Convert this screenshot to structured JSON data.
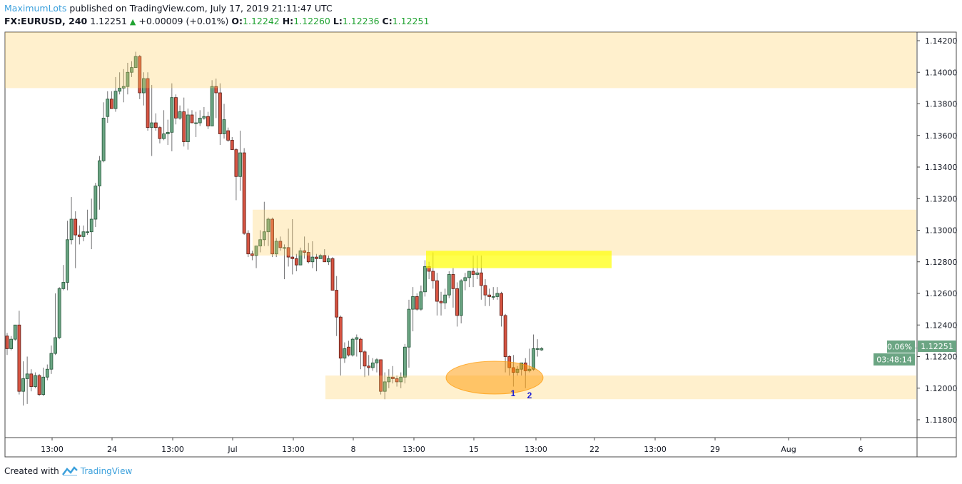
{
  "header": {
    "author": "MaximumLots",
    "published": " published on TradingView.com, July 17, 2019 21:11:47 UTC",
    "symbol": "FX:EURUSD, 240",
    "last": "1.12251",
    "change": "+0.00009 (+0.01%)",
    "o_label": "O:",
    "o": "1.12242",
    "h_label": "H:",
    "h": "1.12260",
    "l_label": "L:",
    "l": "1.12236",
    "c_label": "C:",
    "c": "1.12251"
  },
  "footer": {
    "created_with": "Created with",
    "brand": "TradingView"
  },
  "price_tag": {
    "percent": "0.06%",
    "price": "1.12251",
    "countdown": "03:48:14"
  },
  "markers": [
    "1",
    "2"
  ],
  "colors": {
    "up": "#6ba583",
    "up_border": "#225437",
    "down": "#d75442",
    "down_border": "#5b1a13",
    "wick": "#737375",
    "zone": "#ffcd5a",
    "highlight": "#ffff00",
    "ellipse": "#ff9800",
    "marker_text": "#1d1dd6"
  },
  "chart_data": {
    "type": "candlestick",
    "symbol": "FX:EURUSD",
    "interval": "240",
    "ylim": [
      1.1172,
      1.1426
    ],
    "y_ticks": [
      "1.14200",
      "1.14000",
      "1.13800",
      "1.13600",
      "1.13400",
      "1.13200",
      "1.13000",
      "1.12800",
      "1.12600",
      "1.12400",
      "1.12200",
      "1.12000",
      "1.11800"
    ],
    "x_ticks": [
      "13:00",
      "24",
      "13:00",
      "Jul",
      "13:00",
      "8",
      "13:00",
      "15",
      "13:00",
      "22",
      "13:00",
      "29",
      "Aug",
      "6"
    ],
    "zones": [
      {
        "kind": "supply",
        "low": 1.139,
        "high": 1.1426
      },
      {
        "kind": "resistance",
        "low": 1.1284,
        "high": 1.1313
      },
      {
        "kind": "highlight",
        "low": 1.1276,
        "high": 1.1287
      },
      {
        "kind": "support",
        "low": 1.1193,
        "high": 1.1208
      }
    ],
    "ohlc": [
      [
        1.1233,
        1.1235,
        1.1221,
        1.1225
      ],
      [
        1.1225,
        1.1233,
        1.1224,
        1.1231
      ],
      [
        1.1231,
        1.124,
        1.123,
        1.124
      ],
      [
        1.124,
        1.1249,
        1.1196,
        1.1198
      ],
      [
        1.1198,
        1.1217,
        1.1189,
        1.1206
      ],
      [
        1.1206,
        1.122,
        1.119,
        1.1209
      ],
      [
        1.1209,
        1.1212,
        1.1198,
        1.1201
      ],
      [
        1.1201,
        1.121,
        1.12,
        1.1208
      ],
      [
        1.1208,
        1.1209,
        1.1195,
        1.1196
      ],
      [
        1.1196,
        1.1213,
        1.1195,
        1.1207
      ],
      [
        1.1207,
        1.1215,
        1.1205,
        1.1212
      ],
      [
        1.1212,
        1.1227,
        1.1209,
        1.1222
      ],
      [
        1.1222,
        1.126,
        1.1221,
        1.1232
      ],
      [
        1.1232,
        1.1264,
        1.1231,
        1.1263
      ],
      [
        1.1263,
        1.1278,
        1.1262,
        1.1267
      ],
      [
        1.1267,
        1.1306,
        1.1262,
        1.1294
      ],
      [
        1.1294,
        1.1321,
        1.1291,
        1.1307
      ],
      [
        1.1307,
        1.1312,
        1.1276,
        1.1297
      ],
      [
        1.1297,
        1.1303,
        1.1291,
        1.1296
      ],
      [
        1.1296,
        1.1303,
        1.1293,
        1.1299
      ],
      [
        1.1299,
        1.1313,
        1.1297,
        1.1299
      ],
      [
        1.1299,
        1.132,
        1.1288,
        1.1307
      ],
      [
        1.1307,
        1.133,
        1.1302,
        1.1328
      ],
      [
        1.1328,
        1.1347,
        1.1313,
        1.1344
      ],
      [
        1.1344,
        1.1381,
        1.1343,
        1.1371
      ],
      [
        1.1372,
        1.1388,
        1.1368,
        1.1383
      ],
      [
        1.1383,
        1.1388,
        1.1377,
        1.1377
      ],
      [
        1.1377,
        1.1397,
        1.1375,
        1.1388
      ],
      [
        1.1388,
        1.14,
        1.1386,
        1.139
      ],
      [
        1.139,
        1.1402,
        1.1381,
        1.1391
      ],
      [
        1.1391,
        1.1406,
        1.1386,
        1.14
      ],
      [
        1.14,
        1.1407,
        1.1397,
        1.1403
      ],
      [
        1.1403,
        1.1413,
        1.1403,
        1.141
      ],
      [
        1.141,
        1.1411,
        1.1383,
        1.1387
      ],
      [
        1.1387,
        1.14,
        1.1379,
        1.1396
      ],
      [
        1.1396,
        1.14,
        1.1363,
        1.1365
      ],
      [
        1.1365,
        1.1392,
        1.1347,
        1.1368
      ],
      [
        1.1368,
        1.1374,
        1.1363,
        1.1365
      ],
      [
        1.1365,
        1.1366,
        1.1355,
        1.1358
      ],
      [
        1.1358,
        1.1376,
        1.1357,
        1.1361
      ],
      [
        1.1361,
        1.137,
        1.1354,
        1.1362
      ],
      [
        1.1362,
        1.1393,
        1.135,
        1.1384
      ],
      [
        1.1384,
        1.1386,
        1.1367,
        1.1371
      ],
      [
        1.1371,
        1.1379,
        1.137,
        1.1375
      ],
      [
        1.1375,
        1.1384,
        1.1353,
        1.1356
      ],
      [
        1.1356,
        1.1377,
        1.1351,
        1.1373
      ],
      [
        1.1373,
        1.1376,
        1.1368,
        1.1368
      ],
      [
        1.1368,
        1.1375,
        1.1359,
        1.1368
      ],
      [
        1.1368,
        1.1376,
        1.1366,
        1.1371
      ],
      [
        1.1371,
        1.1378,
        1.137,
        1.1372
      ],
      [
        1.1372,
        1.1375,
        1.1364,
        1.1366
      ],
      [
        1.1366,
        1.1395,
        1.1366,
        1.1391
      ],
      [
        1.1391,
        1.1396,
        1.1371,
        1.1387
      ],
      [
        1.1387,
        1.1393,
        1.1354,
        1.1361
      ],
      [
        1.1361,
        1.138,
        1.1358,
        1.137
      ],
      [
        1.1363,
        1.1365,
        1.1356,
        1.1357
      ],
      [
        1.1357,
        1.1359,
        1.1351,
        1.1351
      ],
      [
        1.1351,
        1.1352,
        1.1319,
        1.1334
      ],
      [
        1.1334,
        1.1363,
        1.1325,
        1.1349
      ],
      [
        1.1349,
        1.1352,
        1.1297,
        1.1298
      ],
      [
        1.1298,
        1.13,
        1.1283,
        1.1285
      ],
      [
        1.1285,
        1.1287,
        1.1281,
        1.1284
      ],
      [
        1.1284,
        1.129,
        1.1276,
        1.129
      ],
      [
        1.129,
        1.13,
        1.1286,
        1.1294
      ],
      [
        1.1294,
        1.1318,
        1.129,
        1.1299
      ],
      [
        1.1299,
        1.1308,
        1.129,
        1.1307
      ],
      [
        1.1307,
        1.1308,
        1.1283,
        1.1285
      ],
      [
        1.1285,
        1.1295,
        1.1283,
        1.1293
      ],
      [
        1.1293,
        1.1296,
        1.1287,
        1.1289
      ],
      [
        1.1289,
        1.1291,
        1.1269,
        1.1289
      ],
      [
        1.1289,
        1.1301,
        1.1277,
        1.1283
      ],
      [
        1.1283,
        1.1307,
        1.1272,
        1.1282
      ],
      [
        1.1282,
        1.1285,
        1.1274,
        1.1278
      ],
      [
        1.1278,
        1.1289,
        1.1278,
        1.1287
      ],
      [
        1.1287,
        1.1296,
        1.1282,
        1.1286
      ],
      [
        1.1286,
        1.1292,
        1.1279,
        1.128
      ],
      [
        1.128,
        1.1293,
        1.1276,
        1.1283
      ],
      [
        1.1283,
        1.1285,
        1.1274,
        1.1282
      ],
      [
        1.1282,
        1.1285,
        1.1282,
        1.1284
      ],
      [
        1.1284,
        1.1288,
        1.128,
        1.128
      ],
      [
        1.128,
        1.1284,
        1.1278,
        1.1282
      ],
      [
        1.1282,
        1.1283,
        1.1262,
        1.1262
      ],
      [
        1.1262,
        1.1271,
        1.1233,
        1.1245
      ],
      [
        1.1245,
        1.1246,
        1.1208,
        1.1219
      ],
      [
        1.1219,
        1.1229,
        1.1216,
        1.1225
      ],
      [
        1.1226,
        1.123,
        1.122,
        1.1221
      ],
      [
        1.1221,
        1.1232,
        1.122,
        1.1231
      ],
      [
        1.1231,
        1.1234,
        1.122,
        1.1232
      ],
      [
        1.1231,
        1.1232,
        1.1212,
        1.1223
      ],
      [
        1.1223,
        1.1224,
        1.1207,
        1.1214
      ],
      [
        1.1214,
        1.1221,
        1.1208,
        1.1213
      ],
      [
        1.1213,
        1.1219,
        1.1211,
        1.1216
      ],
      [
        1.1216,
        1.1219,
        1.121,
        1.1218
      ],
      [
        1.1218,
        1.1218,
        1.1196,
        1.1198
      ],
      [
        1.1198,
        1.121,
        1.1193,
        1.1204
      ],
      [
        1.1204,
        1.1212,
        1.12,
        1.1207
      ],
      [
        1.1207,
        1.1214,
        1.1203,
        1.1206
      ],
      [
        1.1206,
        1.1208,
        1.1201,
        1.1204
      ],
      [
        1.1204,
        1.121,
        1.12,
        1.1207
      ],
      [
        1.1207,
        1.1228,
        1.1203,
        1.1226
      ],
      [
        1.1226,
        1.1256,
        1.1213,
        1.125
      ],
      [
        1.125,
        1.1264,
        1.1236,
        1.1258
      ],
      [
        1.1258,
        1.126,
        1.1249,
        1.125
      ],
      [
        1.125,
        1.1265,
        1.1249,
        1.1261
      ],
      [
        1.1261,
        1.1281,
        1.1258,
        1.1277
      ],
      [
        1.1277,
        1.128,
        1.1269,
        1.1274
      ],
      [
        1.1274,
        1.1286,
        1.1263,
        1.1268
      ],
      [
        1.1268,
        1.1273,
        1.1246,
        1.1255
      ],
      [
        1.1255,
        1.1261,
        1.1246,
        1.1254
      ],
      [
        1.1254,
        1.1263,
        1.125,
        1.1259
      ],
      [
        1.1259,
        1.1274,
        1.1257,
        1.1272
      ],
      [
        1.1272,
        1.1276,
        1.1251,
        1.1263
      ],
      [
        1.1263,
        1.1267,
        1.1239,
        1.1246
      ],
      [
        1.1246,
        1.1269,
        1.1241,
        1.1268
      ],
      [
        1.1268,
        1.1273,
        1.1262,
        1.127
      ],
      [
        1.127,
        1.1274,
        1.1264,
        1.1274
      ],
      [
        1.1274,
        1.1284,
        1.1264,
        1.1272
      ],
      [
        1.1272,
        1.1284,
        1.1269,
        1.1273
      ],
      [
        1.1273,
        1.1284,
        1.1256,
        1.1265
      ],
      [
        1.1265,
        1.1269,
        1.1252,
        1.1259
      ],
      [
        1.1259,
        1.1263,
        1.1252,
        1.1258
      ],
      [
        1.1258,
        1.1264,
        1.1256,
        1.1258
      ],
      [
        1.1258,
        1.1264,
        1.1256,
        1.126
      ],
      [
        1.126,
        1.1261,
        1.1239,
        1.1246
      ],
      [
        1.1246,
        1.1247,
        1.121,
        1.122
      ],
      [
        1.122,
        1.1221,
        1.1208,
        1.1213
      ],
      [
        1.1213,
        1.1221,
        1.1201,
        1.121
      ],
      [
        1.121,
        1.1214,
        1.1208,
        1.1212
      ],
      [
        1.1212,
        1.1216,
        1.1208,
        1.1216
      ],
      [
        1.1216,
        1.1219,
        1.12,
        1.1211
      ],
      [
        1.1211,
        1.1225,
        1.121,
        1.1212
      ],
      [
        1.1212,
        1.1234,
        1.1211,
        1.1225
      ],
      [
        1.1225,
        1.1231,
        1.122,
        1.1225
      ],
      [
        1.12242,
        1.1226,
        1.12236,
        1.12251
      ]
    ]
  }
}
